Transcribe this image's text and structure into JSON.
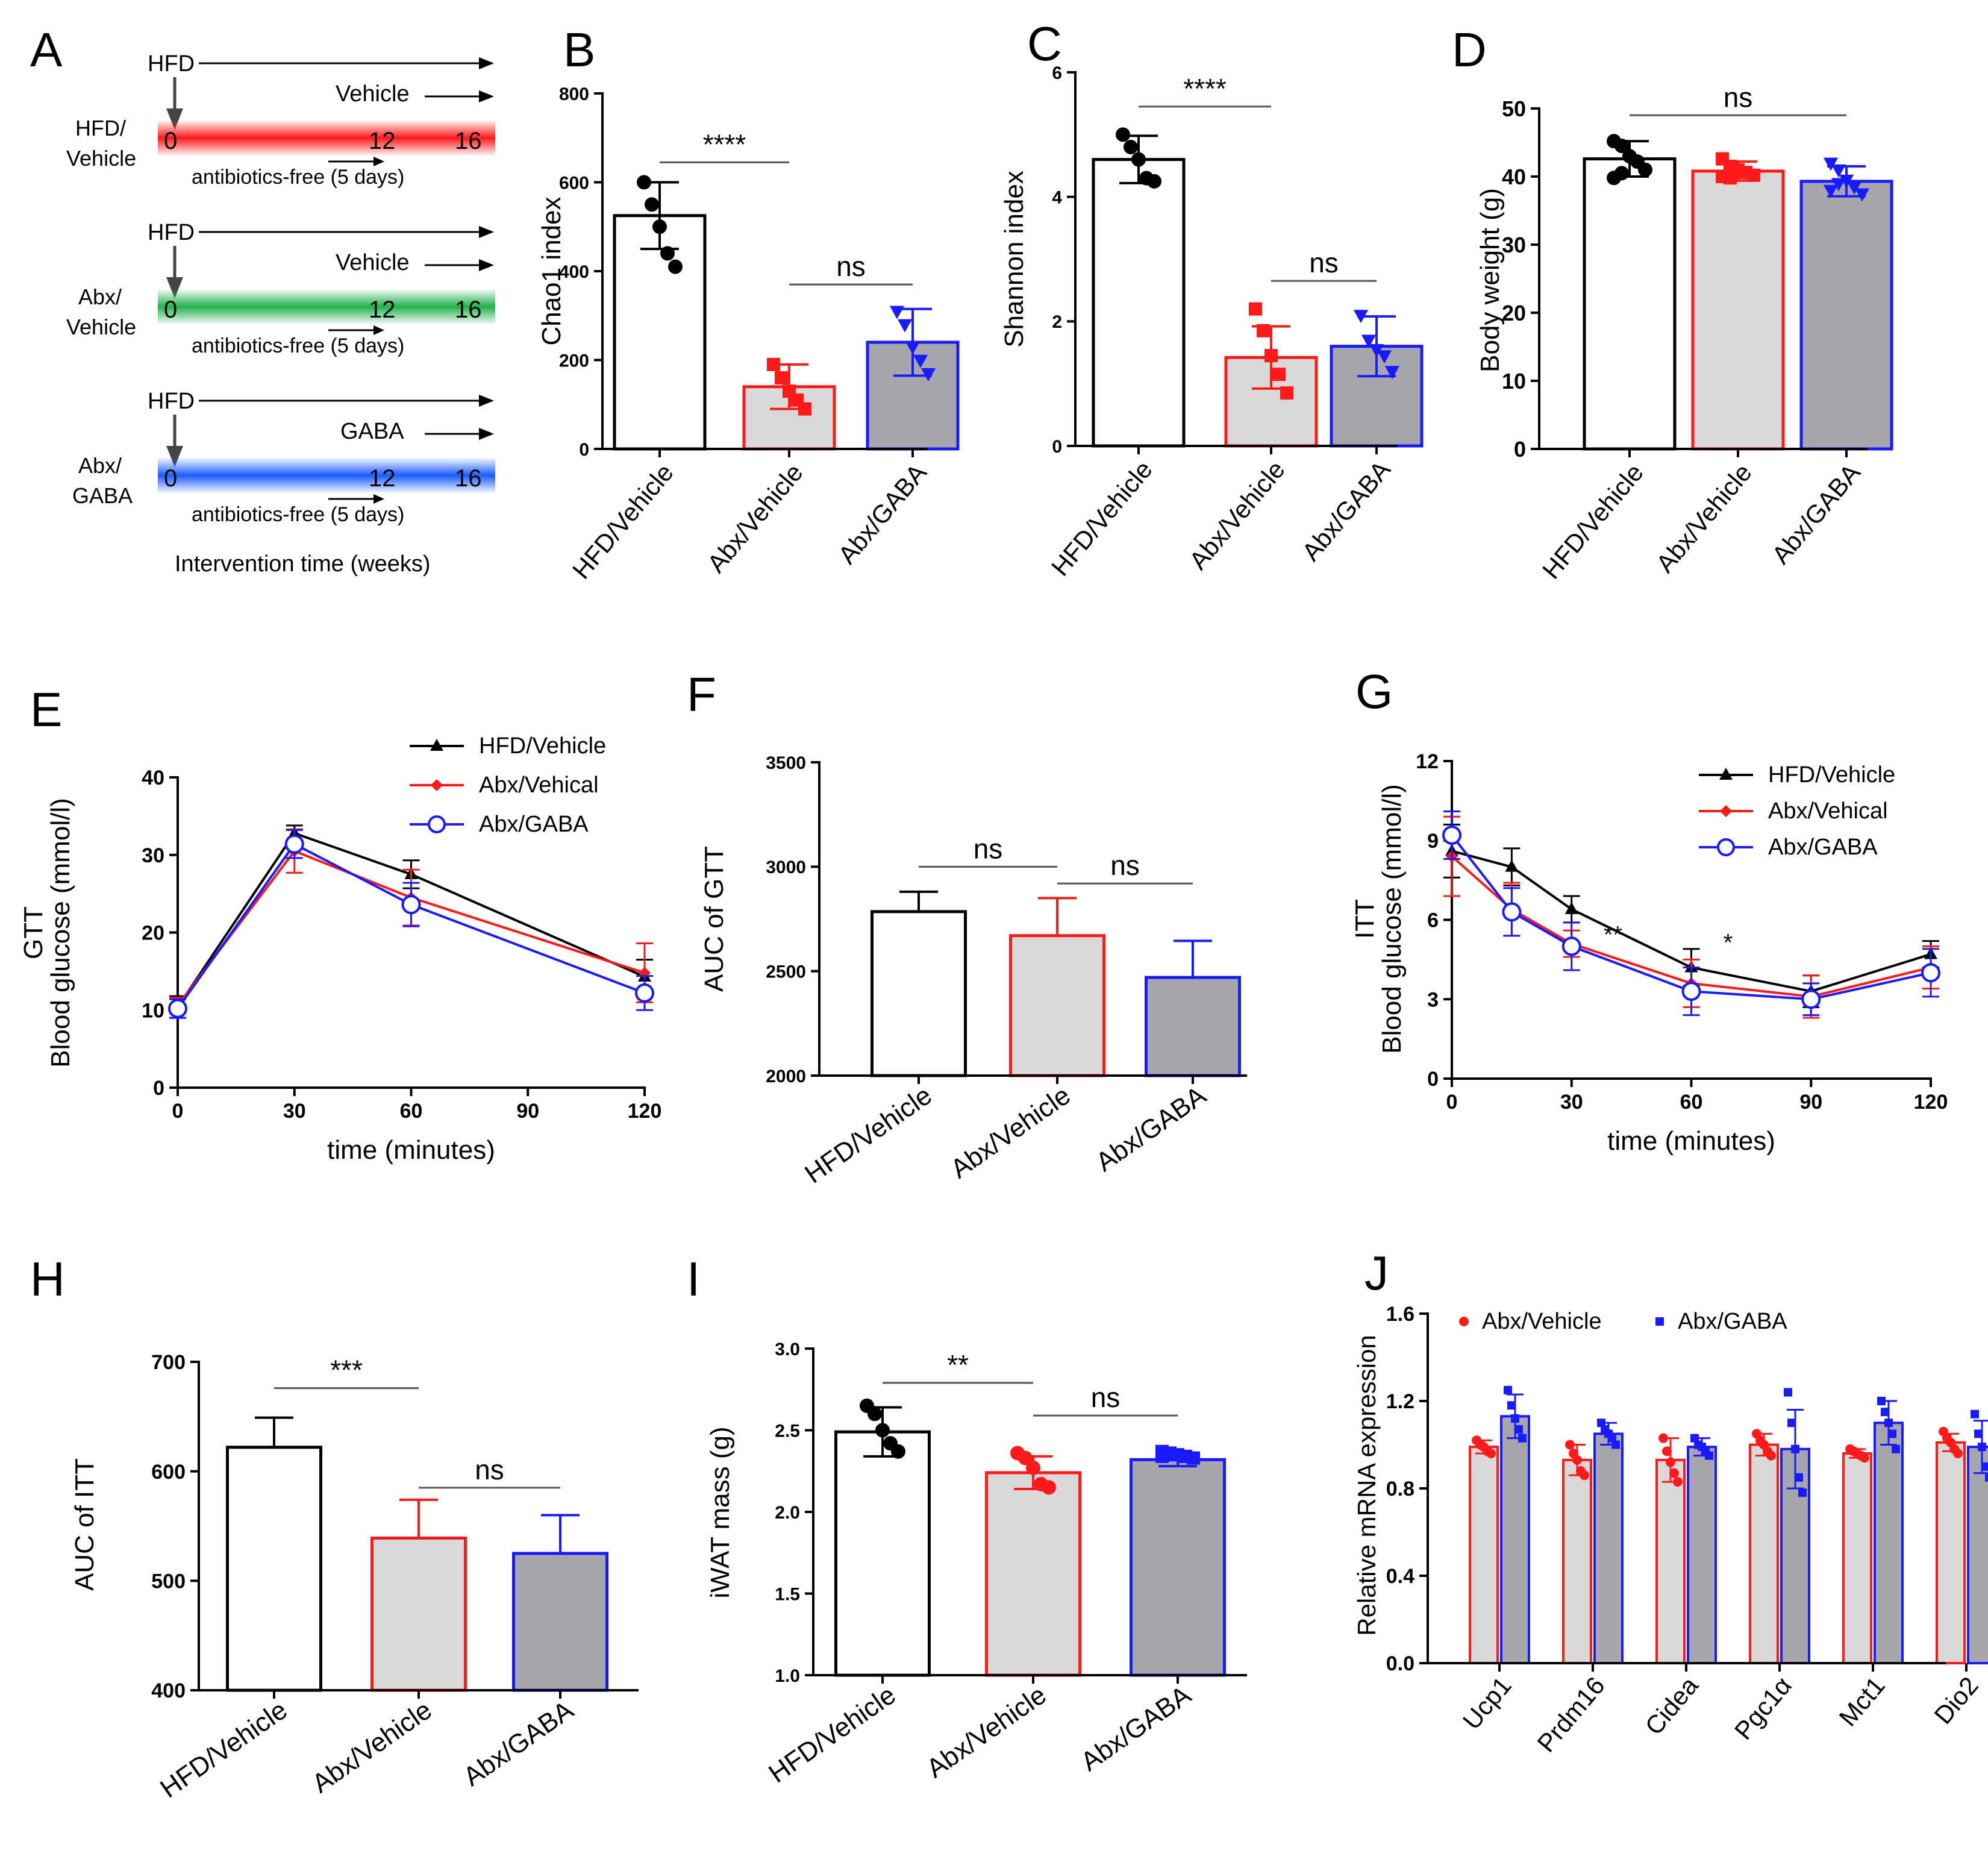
{
  "colors": {
    "black": "#000000",
    "red": "#ff1a1a",
    "blue": "#1a1aff",
    "light_gray": "#d9d9d9",
    "dark_gray": "#a6a6ad",
    "white": "#ffffff",
    "line_gray": "#555555"
  },
  "panel_a": {
    "letter": "A",
    "footer": "Intervention time (weeks)",
    "rows": [
      {
        "name": "hfd-vehicle",
        "label_lines": [
          "HFD/",
          "Vehicle"
        ],
        "top": "HFD",
        "treatment": "Vehicle",
        "ticks": [
          "0",
          "12",
          "16"
        ],
        "note": "antibiotics-free (5 days)",
        "color": "#ff1a1a"
      },
      {
        "name": "abx-vehicle",
        "label_lines": [
          "Abx/",
          "Vehicle"
        ],
        "top": "HFD",
        "treatment": "Vehicle",
        "ticks": [
          "0",
          "12",
          "16"
        ],
        "note": "antibiotics-free (5 days)",
        "color": "#22b14c"
      },
      {
        "name": "abx-gaba",
        "label_lines": [
          "Abx/",
          "GABA"
        ],
        "top": "HFD",
        "treatment": "GABA",
        "ticks": [
          "0",
          "12",
          "16"
        ],
        "note": "antibiotics-free (5 days)",
        "color": "#1a5cff"
      }
    ]
  },
  "chart_data": [
    {
      "id": "B",
      "letter": "B",
      "type": "bar",
      "ylabel": "Chao1 index",
      "ylim": [
        0,
        800
      ],
      "yticks": [
        0,
        200,
        400,
        600,
        800
      ],
      "ytick_labels": [
        "0",
        "200",
        "400",
        "600",
        "800"
      ],
      "categories": [
        "HFD/Vehicle",
        "Abx/Vehicle",
        "Abx/GABA"
      ],
      "values": [
        525,
        140,
        240
      ],
      "errors": [
        75,
        50,
        75
      ],
      "points": [
        [
          600,
          550,
          500,
          440,
          410
        ],
        [
          190,
          160,
          130,
          110,
          90
        ],
        [
          310,
          280,
          230,
          200,
          170
        ]
      ],
      "markers": [
        "circle",
        "square",
        "triangle-down"
      ],
      "significance": [
        {
          "from": 0,
          "to": 1,
          "y": 645,
          "label": "****"
        },
        {
          "from": 1,
          "to": 2,
          "y": 370,
          "label": "ns"
        }
      ]
    },
    {
      "id": "C",
      "letter": "C",
      "type": "bar",
      "ylabel": "Shannon index",
      "ylim": [
        0,
        6
      ],
      "yticks": [
        0,
        2,
        4,
        6
      ],
      "ytick_labels": [
        "0",
        "2",
        "4",
        "6"
      ],
      "categories": [
        "HFD/Vehicle",
        "Abx/Vehicle",
        "Abx/GABA"
      ],
      "values": [
        4.6,
        1.42,
        1.6
      ],
      "errors": [
        0.38,
        0.5,
        0.48
      ],
      "points": [
        [
          5.0,
          4.8,
          4.6,
          4.3,
          4.25
        ],
        [
          2.2,
          1.85,
          1.45,
          1.15,
          0.85
        ],
        [
          2.1,
          1.7,
          1.55,
          1.45,
          1.2
        ]
      ],
      "markers": [
        "circle",
        "square",
        "triangle-down"
      ],
      "significance": [
        {
          "from": 0,
          "to": 1,
          "y": 5.45,
          "label": "****"
        },
        {
          "from": 1,
          "to": 2,
          "y": 2.65,
          "label": "ns"
        }
      ]
    },
    {
      "id": "D",
      "letter": "D",
      "type": "bar",
      "ylabel": "Body weight (g)",
      "ylim": [
        0,
        50
      ],
      "yticks": [
        0,
        10,
        20,
        30,
        40,
        50
      ],
      "ytick_labels": [
        "0",
        "10",
        "20",
        "30",
        "40",
        "50"
      ],
      "categories": [
        "HFD/Vehicle",
        "Abx/Vehicle",
        "Abx/GABA"
      ],
      "values": [
        42.6,
        40.8,
        39.3
      ],
      "errors": [
        2.6,
        1.4,
        2.2
      ],
      "points": [
        [
          45.2,
          44.5,
          43.0,
          42.2,
          41.0,
          39.8,
          40.5
        ],
        [
          42.6,
          41.5,
          41.0,
          40.6,
          40.2,
          40.0,
          39.8
        ],
        [
          42.0,
          41.0,
          39.5,
          38.5,
          37.5,
          38.0,
          39.0
        ]
      ],
      "markers": [
        "circle",
        "square",
        "triangle-down"
      ],
      "significance": [
        {
          "from": 0,
          "to": 2,
          "y": 49.0,
          "label": "ns"
        }
      ]
    },
    {
      "id": "E",
      "letter": "E",
      "type": "line",
      "ylabel": "Blood glucose (mmol/l)",
      "ylabel_prefix": "GTT",
      "xlabel": "time (minutes)",
      "xlim": [
        0,
        120
      ],
      "ylim": [
        0,
        40
      ],
      "xticks": [
        0,
        30,
        60,
        90,
        120
      ],
      "xtick_labels": [
        "0",
        "30",
        "60",
        "90",
        "120"
      ],
      "yticks": [
        0,
        10,
        20,
        30,
        40
      ],
      "ytick_labels": [
        "0",
        "10",
        "20",
        "30",
        "40"
      ],
      "x": [
        0,
        30,
        60,
        120
      ],
      "series": [
        {
          "name": "HFD/Vehicle",
          "color": "#000000",
          "marker": "triangle",
          "values": [
            10.4,
            32.8,
            27.5,
            14.3
          ],
          "errors": [
            1.4,
            1.0,
            1.8,
            2.2
          ]
        },
        {
          "name": "Abx/Vehical",
          "color": "#ff1a1a",
          "marker": "diamond",
          "values": [
            10.6,
            30.5,
            24.5,
            14.8
          ],
          "errors": [
            1.0,
            2.8,
            3.6,
            3.8
          ]
        },
        {
          "name": "Abx/GABA",
          "color": "#1a1aff",
          "marker": "circle-open",
          "values": [
            10.2,
            31.4,
            23.6,
            12.2
          ],
          "errors": [
            1.2,
            1.8,
            2.8,
            2.2
          ]
        }
      ],
      "annotations": []
    },
    {
      "id": "F",
      "letter": "F",
      "type": "bar",
      "ylabel": "AUC of GTT",
      "ylim": [
        2000,
        3500
      ],
      "yticks": [
        2000,
        2500,
        3000,
        3500
      ],
      "ytick_labels": [
        "2000",
        "2500",
        "3000",
        "3500"
      ],
      "categories": [
        "HFD/Vehicle",
        "Abx/Vehicle",
        "Abx/GABA"
      ],
      "values": [
        2785,
        2670,
        2470
      ],
      "errors": [
        95,
        180,
        175
      ],
      "points": [],
      "markers": [],
      "significance": [
        {
          "from": 0,
          "to": 1,
          "y": 3000,
          "label": "ns"
        },
        {
          "from": 1,
          "to": 2,
          "y": 2920,
          "label": "ns"
        }
      ]
    },
    {
      "id": "G",
      "letter": "G",
      "type": "line",
      "ylabel": "Blood glucose (mmol/l)",
      "ylabel_prefix": "ITT",
      "xlabel": "time (minutes)",
      "xlim": [
        0,
        120
      ],
      "ylim": [
        0,
        12
      ],
      "xticks": [
        0,
        30,
        60,
        90,
        120
      ],
      "xtick_labels": [
        "0",
        "30",
        "60",
        "90",
        "120"
      ],
      "yticks": [
        0,
        3,
        6,
        9,
        12
      ],
      "ytick_labels": [
        "0",
        "3",
        "6",
        "9",
        "12"
      ],
      "x": [
        0,
        15,
        30,
        60,
        90,
        120
      ],
      "series": [
        {
          "name": "HFD/Vehicle",
          "color": "#000000",
          "marker": "triangle",
          "values": [
            8.6,
            8.0,
            6.4,
            4.2,
            3.3,
            4.7
          ],
          "errors": [
            1.0,
            0.7,
            0.5,
            0.7,
            0.6,
            0.5
          ]
        },
        {
          "name": "Abx/Vehical",
          "color": "#ff1a1a",
          "marker": "diamond",
          "values": [
            8.4,
            6.4,
            5.1,
            3.6,
            3.1,
            4.2
          ],
          "errors": [
            1.5,
            1.0,
            0.5,
            0.9,
            0.8,
            0.8
          ]
        },
        {
          "name": "Abx/GABA",
          "color": "#1a1aff",
          "marker": "circle-open",
          "values": [
            9.2,
            6.3,
            5.0,
            3.3,
            3.0,
            4.0
          ],
          "errors": [
            0.9,
            0.9,
            0.9,
            0.9,
            0.6,
            0.9
          ]
        }
      ],
      "annotations": [
        {
          "x": 35,
          "y": 5.0,
          "label": "**"
        },
        {
          "x": 65,
          "y": 4.7,
          "label": "*"
        }
      ]
    },
    {
      "id": "H",
      "letter": "H",
      "type": "bar",
      "ylabel": "AUC of ITT",
      "ylim": [
        400,
        700
      ],
      "yticks": [
        400,
        500,
        600,
        700
      ],
      "ytick_labels": [
        "400",
        "500",
        "600",
        "700"
      ],
      "categories": [
        "HFD/Vehicle",
        "Abx/Vehicle",
        "Abx/GABA"
      ],
      "values": [
        622,
        539,
        525
      ],
      "errors": [
        27,
        35,
        35
      ],
      "points": [],
      "markers": [],
      "significance": [
        {
          "from": 0,
          "to": 1,
          "y": 676,
          "label": "***"
        },
        {
          "from": 1,
          "to": 2,
          "y": 585,
          "label": "ns"
        }
      ]
    },
    {
      "id": "I",
      "letter": "I",
      "type": "bar",
      "ylabel": "iWAT mass (g)",
      "ylim": [
        1.0,
        3.0
      ],
      "yticks": [
        1.0,
        1.5,
        2.0,
        2.5,
        3.0
      ],
      "ytick_labels": [
        "1.0",
        "1.5",
        "2.0",
        "2.5",
        "3.0"
      ],
      "categories": [
        "HFD/Vehicle",
        "Abx/Vehicle",
        "Abx/GABA"
      ],
      "values": [
        2.49,
        2.24,
        2.32
      ],
      "errors": [
        0.15,
        0.1,
        0.04
      ],
      "points": [
        [
          2.65,
          2.6,
          2.5,
          2.42,
          2.37
        ],
        [
          2.36,
          2.33,
          2.27,
          2.17,
          2.15
        ],
        [
          2.37,
          2.36,
          2.35,
          2.34,
          2.33,
          2.34,
          2.35
        ]
      ],
      "markers": [
        "circle",
        "circle",
        "square"
      ],
      "significance": [
        {
          "from": 0,
          "to": 1,
          "y": 2.79,
          "label": "**"
        },
        {
          "from": 1,
          "to": 2,
          "y": 2.59,
          "label": "ns"
        }
      ]
    },
    {
      "id": "J",
      "letter": "J",
      "type": "bar",
      "ylabel": "Relative mRNA expression",
      "ylim": [
        0,
        1.6
      ],
      "yticks": [
        0,
        0.4,
        0.8,
        1.2,
        1.6
      ],
      "ytick_labels": [
        "0.0",
        "0.4",
        "0.8",
        "1.2",
        "1.6"
      ],
      "categories": [
        "Ucp1",
        "Prdm16",
        "Cidea",
        "Pgc1α",
        "Mct1",
        "Dio2"
      ],
      "series": [
        {
          "name": "Abx/Vehicle",
          "color": "#ff1a1a",
          "values": [
            0.99,
            0.93,
            0.93,
            1.0,
            0.96,
            1.01
          ],
          "errors": [
            0.03,
            0.07,
            0.1,
            0.05,
            0.02,
            0.04
          ],
          "points": [
            [
              1.02,
              1.0,
              0.99,
              0.97,
              0.96
            ],
            [
              1.0,
              0.96,
              0.93,
              0.88,
              0.86
            ],
            [
              1.03,
              0.97,
              0.92,
              0.87,
              0.83
            ],
            [
              1.05,
              1.02,
              1.0,
              0.97,
              0.95
            ],
            [
              0.98,
              0.97,
              0.96,
              0.95,
              0.94
            ],
            [
              1.06,
              1.03,
              1.01,
              0.98,
              0.96
            ]
          ]
        },
        {
          "name": "Abx/GABA",
          "color": "#1a1aff",
          "values": [
            1.13,
            1.05,
            0.99,
            0.98,
            1.1,
            0.99
          ],
          "errors": [
            0.1,
            0.05,
            0.04,
            0.18,
            0.1,
            0.12
          ],
          "points": [
            [
              1.25,
              1.18,
              1.12,
              1.07,
              1.03
            ],
            [
              1.1,
              1.07,
              1.05,
              1.03,
              1.0
            ],
            [
              1.03,
              1.0,
              0.99,
              0.97,
              0.95
            ],
            [
              1.24,
              1.1,
              0.98,
              0.85,
              0.78
            ],
            [
              1.2,
              1.15,
              1.1,
              1.05,
              0.98
            ],
            [
              1.14,
              1.05,
              0.99,
              0.9,
              0.85
            ]
          ]
        }
      ]
    }
  ]
}
